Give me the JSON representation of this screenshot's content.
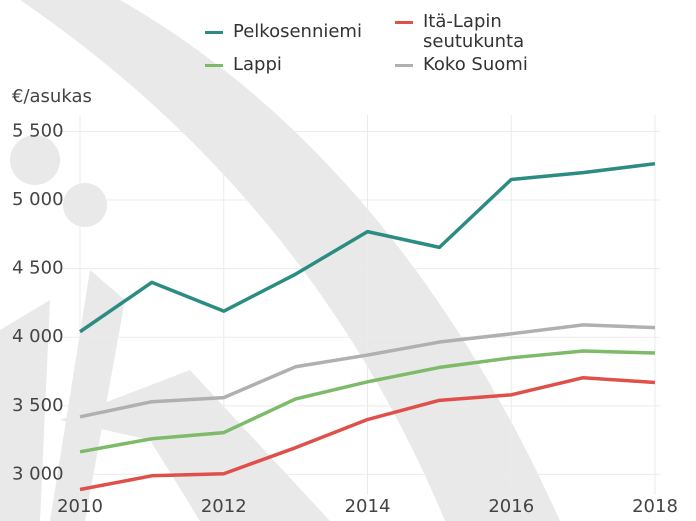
{
  "chart_data": {
    "type": "line",
    "y_label": "€/asukas",
    "x": [
      2010,
      2011,
      2012,
      2013,
      2014,
      2015,
      2016,
      2017,
      2018
    ],
    "series": [
      {
        "name": "Pelkosenniemi",
        "color": "#2a8c82",
        "values": [
          4040,
          4400,
          4190,
          4460,
          4770,
          4655,
          5150,
          5200,
          5265
        ]
      },
      {
        "name": "Itä-Lapin seutukunta",
        "color": "#e0504a",
        "values": [
          2890,
          2990,
          3005,
          3195,
          3400,
          3540,
          3580,
          3705,
          3670
        ]
      },
      {
        "name": "Lappi",
        "color": "#7dbb6a",
        "values": [
          3165,
          3260,
          3305,
          3550,
          3675,
          3780,
          3850,
          3900,
          3885
        ]
      },
      {
        "name": "Koko Suomi",
        "color": "#b0b0b0",
        "values": [
          3420,
          3530,
          3560,
          3785,
          3870,
          3965,
          4025,
          4090,
          4070
        ]
      }
    ],
    "xlim": [
      2010,
      2018
    ],
    "xticks": [
      2010,
      2012,
      2014,
      2016,
      2018
    ],
    "ylim": [
      2850,
      5620
    ],
    "yticks": [
      {
        "value": 3000,
        "label": "3 000"
      },
      {
        "value": 3500,
        "label": "3 500"
      },
      {
        "value": 4000,
        "label": "4 000"
      },
      {
        "value": 4500,
        "label": "4 500"
      },
      {
        "value": 5000,
        "label": "5 000"
      },
      {
        "value": 5500,
        "label": "5 500"
      }
    ],
    "grid": true
  }
}
